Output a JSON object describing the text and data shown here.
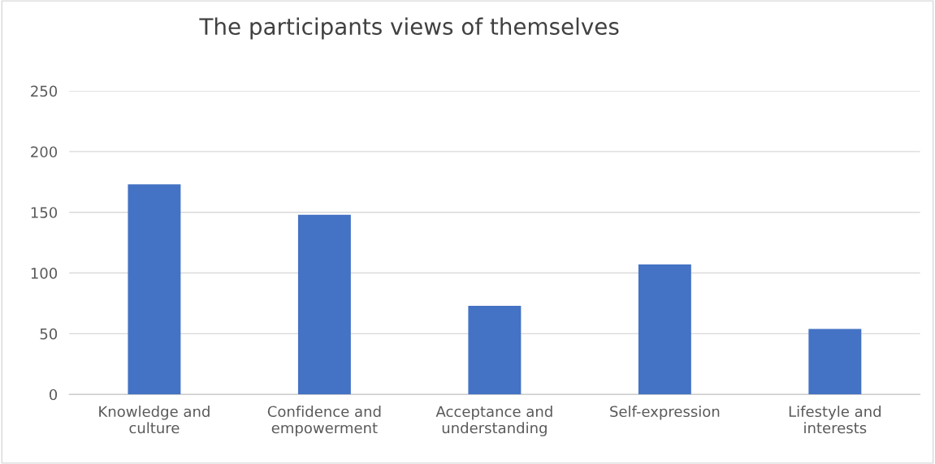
{
  "chart_data": {
    "type": "bar",
    "title": "The participants views of themselves",
    "categories": [
      "Knowledge and\nculture",
      "Confidence and\nempowerment",
      "Acceptance and\nunderstanding",
      "Self-expression",
      "Lifestyle and\ninterests"
    ],
    "values": [
      173,
      148,
      73,
      107,
      54
    ],
    "color": "#4472c4",
    "ylim": [
      0,
      250
    ],
    "yticks": [
      0,
      50,
      100,
      150,
      200,
      250
    ],
    "grid": "y"
  }
}
